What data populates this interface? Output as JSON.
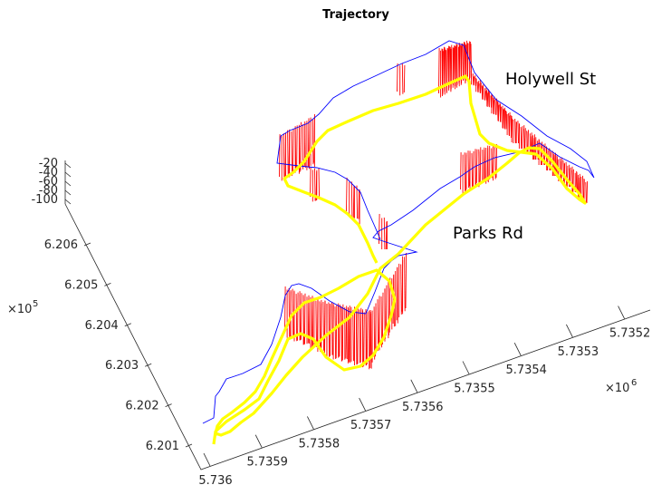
{
  "chart_data": {
    "type": "line",
    "title": "Trajectory",
    "xlabel": "",
    "ylabel": "",
    "zlabel": "",
    "x_axis": {
      "exponent_label": "×10^6",
      "ticks": [
        "5.736",
        "5.7359",
        "5.7358",
        "5.7357",
        "5.7356",
        "5.7355",
        "5.7354",
        "5.7353",
        "5.7352"
      ]
    },
    "y_axis": {
      "exponent_label": "×10^5",
      "ticks": [
        "6.201",
        "6.202",
        "6.203",
        "6.204",
        "6.205",
        "6.206"
      ]
    },
    "z_axis": {
      "ticks": [
        "-20",
        "-40",
        "-60",
        "-80",
        "-100"
      ]
    },
    "annotations": [
      "Holywell St",
      "Parks Rd"
    ],
    "series": [
      {
        "role": "ground-track",
        "color": "#0000ff"
      },
      {
        "role": "altitude-trajectory",
        "color": "#ffff00"
      },
      {
        "role": "vertical-drop-lines",
        "color": "#ff0000"
      }
    ]
  }
}
